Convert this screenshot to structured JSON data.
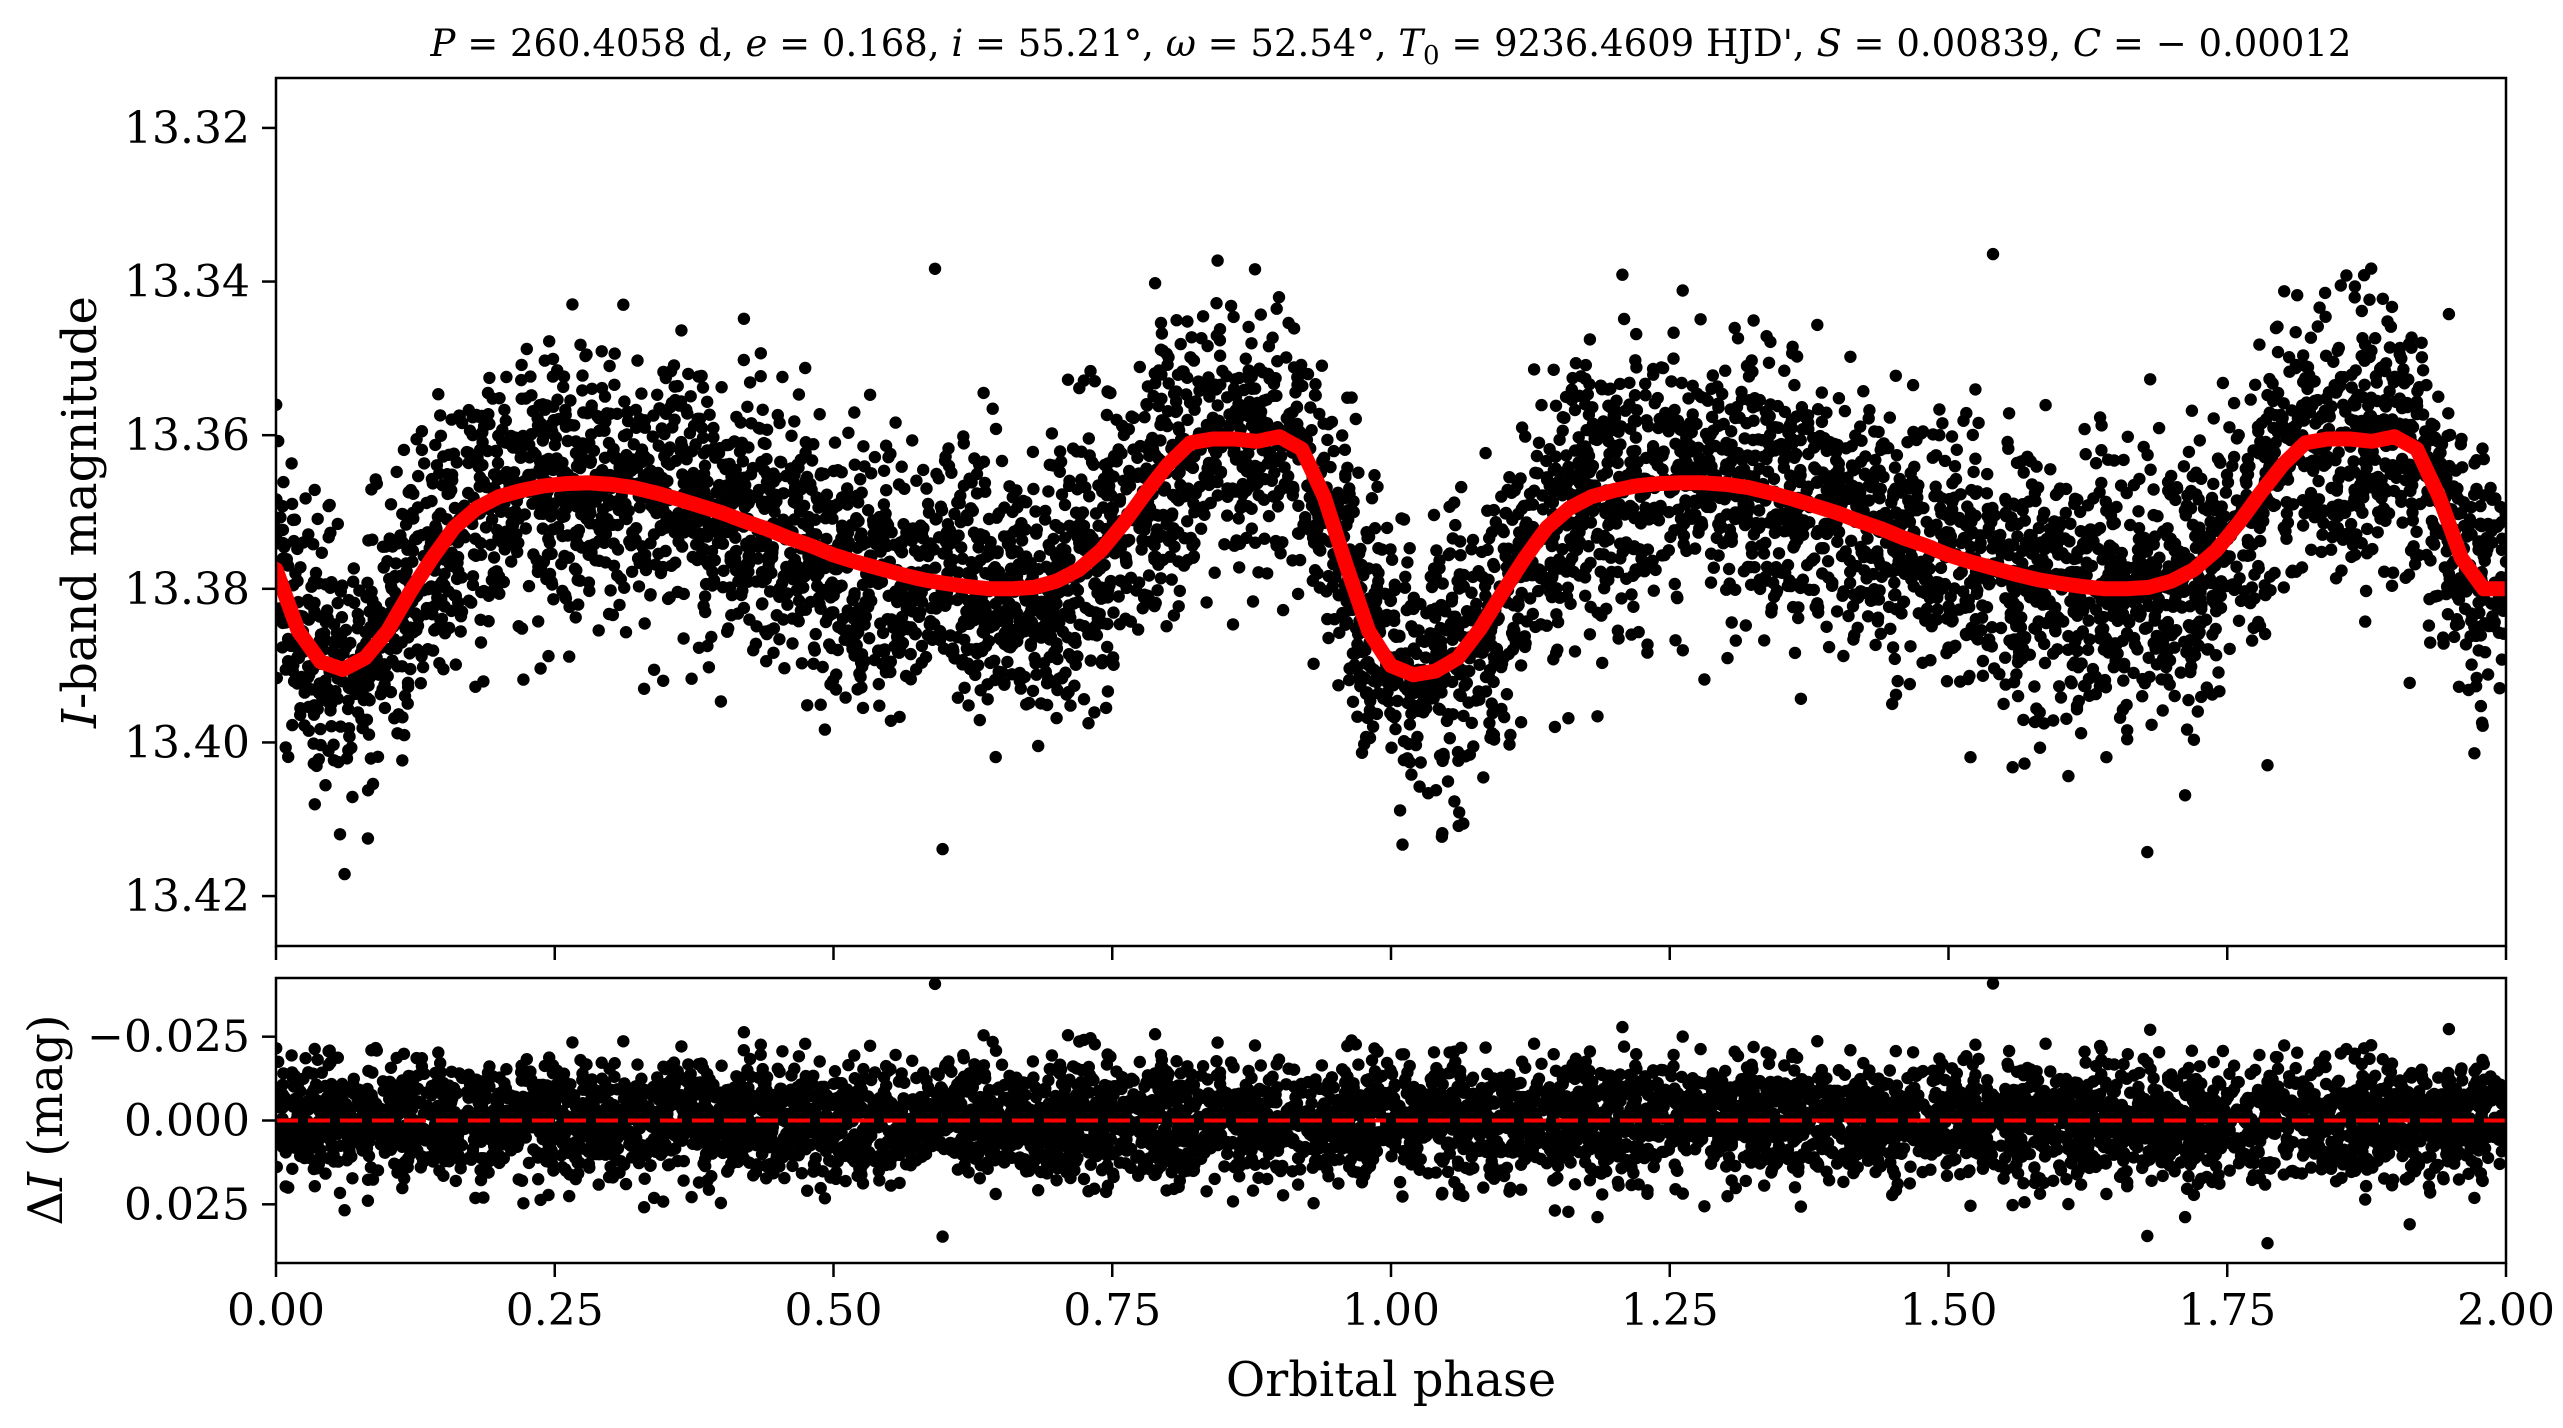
{
  "title": "P = 260.4058 d, e = 0.168, i = 55.21°, ω = 52.54°, T0 = 9236.4609 HJD', S = 0.00839, C = − 0.00012",
  "title_parts": {
    "p_sym": "P",
    "p_val": " = 260.4058 d, ",
    "e_sym": "e",
    "e_val": " = 0.168, ",
    "i_sym": "i",
    "i_val": " = 55.21°, ",
    "w_sym": "ω",
    "w_val": " = 52.54°, ",
    "t_sym": "T",
    "t_sub": "0",
    "t_val": " = 9236.4609 HJD', ",
    "s_sym": "S",
    "s_val": " = 0.00839, ",
    "c_sym": "C",
    "c_val": " = − 0.00012"
  },
  "xlabel": "Orbital phase",
  "ylabel_top": "I-band magnitude",
  "ylabel_top_parts": {
    "sym": "I",
    "rest": "-band magnitude"
  },
  "ylabel_bottom": "ΔI (mag)",
  "ylabel_bottom_parts": {
    "delta": "Δ",
    "sym": "I",
    "rest": " (mag)"
  },
  "colors": {
    "data_points": "#000000",
    "model": "#ff0000",
    "zero_line": "#ff0000"
  },
  "chart_data": [
    {
      "type": "scatter",
      "panel": "light-curve",
      "xlim": [
        0.0,
        2.0
      ],
      "ylim": [
        13.4265,
        13.3135
      ],
      "y_inverted": true,
      "xticks": [
        0.0,
        0.25,
        0.5,
        0.75,
        1.0,
        1.25,
        1.5,
        1.75,
        2.0
      ],
      "yticks": [
        13.32,
        13.34,
        13.36,
        13.38,
        13.4,
        13.42
      ],
      "ytick_labels": [
        "13.32",
        "13.34",
        "13.36",
        "13.38",
        "13.40",
        "13.42"
      ],
      "ylabel": "I-band magnitude",
      "series": [
        {
          "kind": "model-curve",
          "x": [
            0.0,
            0.02,
            0.04,
            0.06,
            0.08,
            0.1,
            0.12,
            0.14,
            0.16,
            0.18,
            0.2,
            0.22,
            0.24,
            0.26,
            0.28,
            0.3,
            0.32,
            0.34,
            0.36,
            0.38,
            0.4,
            0.42,
            0.44,
            0.46,
            0.48,
            0.5,
            0.52,
            0.54,
            0.56,
            0.58,
            0.6,
            0.62,
            0.64,
            0.66,
            0.68,
            0.7,
            0.72,
            0.74,
            0.76,
            0.78,
            0.8,
            0.82,
            0.84,
            0.86,
            0.88,
            0.9,
            0.92,
            0.94,
            0.96,
            0.98,
            1.0,
            1.02,
            1.04,
            1.06,
            1.08,
            1.1,
            1.12,
            1.14,
            1.16,
            1.18,
            1.2,
            1.22,
            1.24,
            1.26,
            1.28,
            1.3,
            1.32,
            1.34,
            1.36,
            1.38,
            1.4,
            1.42,
            1.44,
            1.46,
            1.48,
            1.5,
            1.52,
            1.54,
            1.56,
            1.58,
            1.6,
            1.62,
            1.64,
            1.66,
            1.68,
            1.7,
            1.72,
            1.74,
            1.76,
            1.78,
            1.8,
            1.82,
            1.84,
            1.86,
            1.88,
            1.9,
            1.92,
            1.94,
            1.96,
            1.98,
            2.0
          ],
          "y": [
            13.3775,
            13.3855,
            13.3895,
            13.3905,
            13.389,
            13.3855,
            13.3805,
            13.376,
            13.372,
            13.3695,
            13.368,
            13.3672,
            13.3666,
            13.3663,
            13.3662,
            13.3664,
            13.3668,
            13.3675,
            13.3683,
            13.3692,
            13.3701,
            13.3712,
            13.3722,
            13.3734,
            13.3744,
            13.3756,
            13.3765,
            13.3773,
            13.3781,
            13.3788,
            13.3793,
            13.3797,
            13.38,
            13.38,
            13.3798,
            13.379,
            13.3775,
            13.375,
            13.3715,
            13.3675,
            13.3638,
            13.361,
            13.3605,
            13.3605,
            13.3608,
            13.3602,
            13.3618,
            13.368,
            13.377,
            13.3855,
            13.39,
            13.3912,
            13.3907,
            13.389,
            13.3852,
            13.3805,
            13.376,
            13.372,
            13.3695,
            13.368,
            13.3672,
            13.3666,
            13.3663,
            13.3662,
            13.3662,
            13.3664,
            13.3668,
            13.3675,
            13.3683,
            13.3692,
            13.3701,
            13.3712,
            13.3722,
            13.3734,
            13.3744,
            13.3756,
            13.3765,
            13.3773,
            13.3781,
            13.3788,
            13.3793,
            13.3797,
            13.38,
            13.38,
            13.3798,
            13.379,
            13.3775,
            13.375,
            13.3715,
            13.3675,
            13.3638,
            13.361,
            13.3605,
            13.3605,
            13.3608,
            13.3602,
            13.3618,
            13.368,
            13.376,
            13.38,
            13.38
          ]
        },
        {
          "kind": "observations",
          "scatter_sigma_mag": 0.009,
          "point_count_approx": 6000
        }
      ]
    },
    {
      "type": "scatter",
      "panel": "residuals",
      "xlim": [
        0.0,
        2.0
      ],
      "ylim": [
        0.0425,
        -0.0425
      ],
      "y_inverted": true,
      "xticks": [
        0.0,
        0.25,
        0.5,
        0.75,
        1.0,
        1.25,
        1.5,
        1.75,
        2.0
      ],
      "xtick_labels": [
        "0.00",
        "0.25",
        "0.50",
        "0.75",
        "1.00",
        "1.25",
        "1.50",
        "1.75",
        "2.00"
      ],
      "yticks": [
        -0.025,
        0.0,
        0.025
      ],
      "ytick_labels": [
        "−0.025",
        "0.000",
        "0.025"
      ],
      "xlabel": "Orbital phase",
      "ylabel": "ΔI (mag)",
      "series": [
        {
          "kind": "zero-line",
          "y": 0.0
        },
        {
          "kind": "residuals",
          "scatter_sigma_mag": 0.009,
          "point_count_approx": 6000
        }
      ]
    }
  ]
}
